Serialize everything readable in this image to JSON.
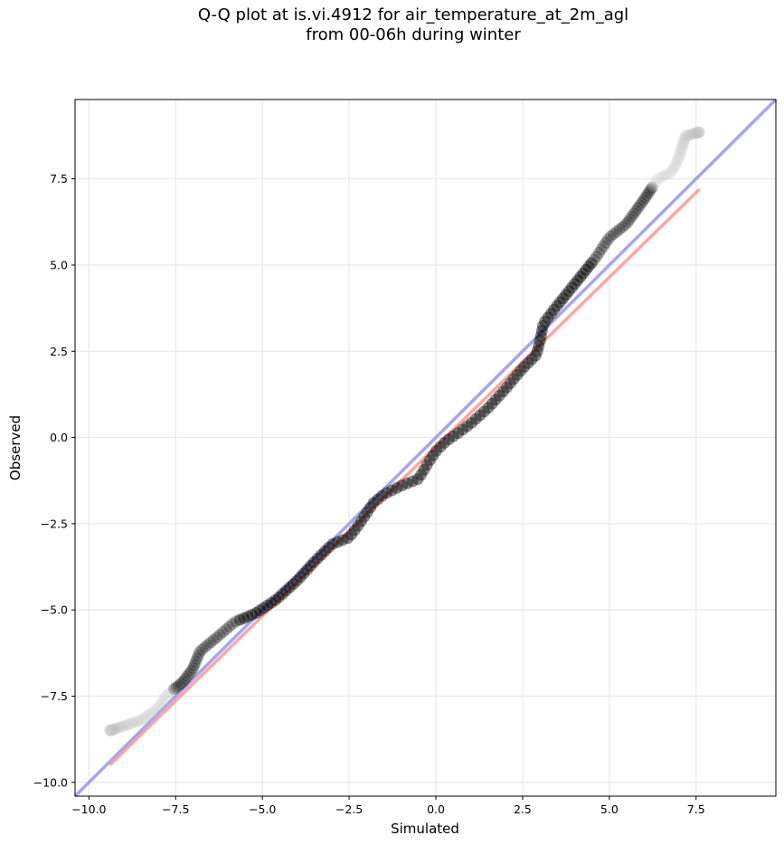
{
  "title_lines": [
    "Q-Q plot at is.vi.4912 for air_temperature_at_2m_agl",
    "from 00-06h during winter"
  ],
  "chart_data": {
    "type": "scatter",
    "title": "Q-Q plot at is.vi.4912 for air_temperature_at_2m_agl from 00-06h during winter",
    "xlabel": "Simulated",
    "ylabel": "Observed",
    "xlim": [
      -10.4,
      9.8
    ],
    "ylim": [
      -10.4,
      9.8
    ],
    "xticks": [
      -10.0,
      -7.5,
      -5.0,
      -2.5,
      0.0,
      2.5,
      5.0,
      7.5
    ],
    "yticks": [
      -10.0,
      -7.5,
      -5.0,
      -2.5,
      0.0,
      2.5,
      5.0,
      7.5
    ],
    "xtick_labels": [
      "−10.0",
      "−7.5",
      "−5.0",
      "−2.5",
      "0.0",
      "2.5",
      "5.0",
      "7.5"
    ],
    "ytick_labels": [
      "−10.0",
      "−7.5",
      "−5.0",
      "−2.5",
      "0.0",
      "2.5",
      "5.0",
      "7.5"
    ],
    "grid": true,
    "quantile_curve": [
      [
        -9.4,
        -8.5
      ],
      [
        -8.5,
        -8.2
      ],
      [
        -8.0,
        -7.85
      ],
      [
        -7.8,
        -7.5
      ],
      [
        -7.3,
        -7.1
      ],
      [
        -7.0,
        -6.7
      ],
      [
        -6.8,
        -6.2
      ],
      [
        -6.5,
        -5.95
      ],
      [
        -6.2,
        -5.7
      ],
      [
        -5.8,
        -5.35
      ],
      [
        -5.2,
        -5.1
      ],
      [
        -4.6,
        -4.7
      ],
      [
        -4.0,
        -4.15
      ],
      [
        -3.5,
        -3.6
      ],
      [
        -3.0,
        -3.1
      ],
      [
        -2.5,
        -2.9
      ],
      [
        -2.2,
        -2.5
      ],
      [
        -1.8,
        -1.9
      ],
      [
        -1.5,
        -1.65
      ],
      [
        -1.0,
        -1.4
      ],
      [
        -0.5,
        -1.2
      ],
      [
        -0.2,
        -0.7
      ],
      [
        0.0,
        -0.4
      ],
      [
        0.3,
        -0.1
      ],
      [
        0.6,
        0.1
      ],
      [
        1.0,
        0.4
      ],
      [
        1.5,
        0.85
      ],
      [
        2.0,
        1.4
      ],
      [
        2.5,
        2.0
      ],
      [
        2.9,
        2.4
      ],
      [
        3.0,
        2.8
      ],
      [
        3.1,
        3.3
      ],
      [
        3.4,
        3.7
      ],
      [
        3.8,
        4.2
      ],
      [
        4.2,
        4.7
      ],
      [
        4.6,
        5.2
      ],
      [
        5.0,
        5.8
      ],
      [
        5.5,
        6.2
      ],
      [
        6.0,
        6.9
      ],
      [
        6.4,
        7.5
      ],
      [
        6.8,
        7.7
      ],
      [
        7.0,
        8.1
      ],
      [
        7.2,
        8.75
      ],
      [
        7.6,
        8.85
      ]
    ],
    "point_count": 260,
    "reference_lines": [
      {
        "color": "#8888ee",
        "x": [
          -10.4,
          9.8
        ],
        "y": [
          -10.4,
          9.8
        ]
      },
      {
        "color": "#ff8888",
        "x": [
          -9.4,
          7.6
        ],
        "y": [
          -9.5,
          7.2
        ]
      }
    ],
    "colors": {
      "points": "#000000",
      "points_sparse": "#bbbbbb",
      "grid": "#e8e8e8"
    }
  }
}
